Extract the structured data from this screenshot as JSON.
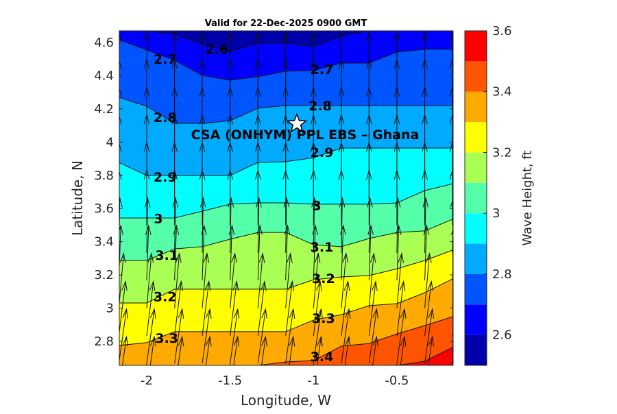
{
  "chart_data": {
    "type": "contour",
    "title": "Valid for 22-Dec-2025 0900 GMT",
    "xlabel": "Longitude, W",
    "ylabel": "Latitude, N",
    "colorbar_label": "Wave Height, ft",
    "xlim": [
      -2.167,
      -0.167
    ],
    "ylim": [
      2.655,
      4.67
    ],
    "xticks": [
      -2,
      -1.5,
      -1,
      -0.5
    ],
    "xtick_labels": [
      "-2",
      "-1.5",
      "-1",
      "-0.5"
    ],
    "yticks": [
      2.8,
      3.0,
      3.2,
      3.4,
      3.6,
      3.8,
      4.0,
      4.2,
      4.4,
      4.6
    ],
    "ytick_labels": [
      "2.8",
      "3",
      "3.2",
      "3.4",
      "3.6",
      "3.8",
      "4",
      "4.2",
      "4.4",
      "4.6"
    ],
    "colorbar": {
      "range": [
        2.5,
        3.6
      ],
      "ticks": [
        2.6,
        2.8,
        3.0,
        3.2,
        3.4,
        3.6
      ],
      "tick_labels": [
        "2.6",
        "2.8",
        "3",
        "3.2",
        "3.4",
        "3.6"
      ],
      "levels": [
        2.5,
        2.6,
        2.7,
        2.8,
        2.9,
        3.0,
        3.1,
        3.2,
        3.3,
        3.4,
        3.5,
        3.6
      ],
      "colors": [
        "#0000aa",
        "#0000ff",
        "#0055ff",
        "#00aaff",
        "#00ffff",
        "#55ffaa",
        "#aaff55",
        "#ffff00",
        "#ffaa00",
        "#ff5500",
        "#ff0000"
      ]
    },
    "contour_lons": [
      -2.167,
      -2.0,
      -1.833,
      -1.667,
      -1.5,
      -1.333,
      -1.167,
      -1.0,
      -0.833,
      -0.667,
      -0.5,
      -0.333,
      -0.167
    ],
    "contours": [
      {
        "level": 2.6,
        "lats": [
          4.67,
          4.67,
          4.65,
          4.588,
          4.546,
          4.596,
          4.596,
          4.575,
          4.64,
          4.67,
          4.67,
          4.67,
          4.67
        ]
      },
      {
        "level": 2.7,
        "lats": [
          4.617,
          4.555,
          4.493,
          4.402,
          4.373,
          4.394,
          4.427,
          4.431,
          4.476,
          4.476,
          4.542,
          4.559,
          4.559
        ]
      },
      {
        "level": 2.8,
        "lats": [
          4.27,
          4.216,
          4.113,
          4.113,
          4.129,
          4.204,
          4.22,
          4.22,
          4.22,
          4.22,
          4.22,
          4.22,
          4.22
        ]
      },
      {
        "level": 2.9,
        "lats": [
          3.877,
          3.799,
          3.799,
          3.799,
          3.799,
          3.877,
          3.882,
          3.906,
          3.964,
          3.964,
          3.964,
          3.964,
          3.964
        ]
      },
      {
        "level": 3.0,
        "lats": [
          3.543,
          3.543,
          3.543,
          3.584,
          3.626,
          3.634,
          3.634,
          3.626,
          3.626,
          3.626,
          3.634,
          3.708,
          3.749
        ]
      },
      {
        "level": 3.1,
        "lats": [
          3.287,
          3.287,
          3.357,
          3.37,
          3.415,
          3.456,
          3.456,
          3.382,
          3.37,
          3.419,
          3.456,
          3.465,
          3.535
        ]
      },
      {
        "level": 3.2,
        "lats": [
          3.031,
          3.031,
          3.114,
          3.114,
          3.114,
          3.114,
          3.114,
          3.171,
          3.188,
          3.196,
          3.237,
          3.287,
          3.349
        ]
      },
      {
        "level": 3.3,
        "lats": [
          2.775,
          2.792,
          2.858,
          2.858,
          2.858,
          2.858,
          2.858,
          2.928,
          2.961,
          3.015,
          3.027,
          3.093,
          3.175
        ]
      },
      {
        "level": 3.4,
        "lats": [
          2.655,
          2.655,
          2.655,
          2.655,
          2.655,
          2.655,
          2.676,
          2.684,
          2.771,
          2.787,
          2.845,
          2.895,
          2.948
        ]
      },
      {
        "level": 3.5,
        "lats": [
          2.655,
          2.655,
          2.655,
          2.655,
          2.655,
          2.655,
          2.655,
          2.655,
          2.655,
          2.655,
          2.655,
          2.68,
          2.763
        ]
      }
    ],
    "contour_labels": [
      {
        "text": "2.6",
        "lon": -1.58,
        "lat": 4.56
      },
      {
        "text": "2.7",
        "lon": -1.89,
        "lat": 4.5
      },
      {
        "text": "2.7",
        "lon": -0.95,
        "lat": 4.44
      },
      {
        "text": "2.8",
        "lon": -1.89,
        "lat": 4.15
      },
      {
        "text": "2.8",
        "lon": -0.96,
        "lat": 4.22
      },
      {
        "text": "2.9",
        "lon": -0.95,
        "lat": 3.94
      },
      {
        "text": "2.9",
        "lon": -1.89,
        "lat": 3.79
      },
      {
        "text": "3",
        "lon": -1.93,
        "lat": 3.54
      },
      {
        "text": "3",
        "lon": -0.98,
        "lat": 3.62
      },
      {
        "text": "3.1",
        "lon": -1.88,
        "lat": 3.32
      },
      {
        "text": "3.1",
        "lon": -0.95,
        "lat": 3.37
      },
      {
        "text": "3.2",
        "lon": -1.89,
        "lat": 3.07
      },
      {
        "text": "3.2",
        "lon": -0.94,
        "lat": 3.18
      },
      {
        "text": "3.3",
        "lon": -1.88,
        "lat": 2.82
      },
      {
        "text": "3.3",
        "lon": -0.94,
        "lat": 2.94
      },
      {
        "text": "3.4",
        "lon": -0.95,
        "lat": 2.71
      }
    ],
    "vectors": {
      "lons": [
        -2.167,
        -2.0,
        -1.833,
        -1.667,
        -1.5,
        -1.333,
        -1.167,
        -1.0,
        -0.833,
        -0.667,
        -0.5,
        -0.333,
        -0.167
      ],
      "lats": [
        2.5,
        2.667,
        2.833,
        3.0,
        3.167,
        3.333,
        3.5,
        3.667,
        3.833,
        4.0,
        4.167,
        4.333,
        4.5
      ],
      "direction_deg_by_row": [
        8,
        8,
        7,
        5,
        2,
        1,
        0,
        0,
        0,
        0,
        0,
        0,
        0
      ],
      "length_deg": 0.33
    },
    "site": {
      "label": "CSA (ONHYM) PPL EBS  – Ghana",
      "lon": -1.1,
      "lat": 4.11,
      "marker": "star-icon"
    }
  }
}
